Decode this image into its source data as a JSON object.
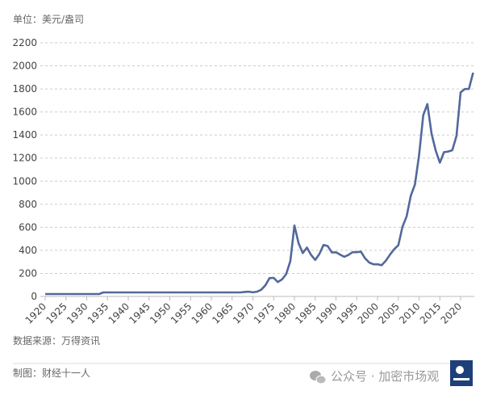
{
  "unit_label": "单位：美元/盎司",
  "source_label": "数据来源：万得资讯",
  "credit_label": "制图：财经十一人",
  "watermark": "公众号 · 加密市场观",
  "chart_data": {
    "type": "line",
    "title": "",
    "xlabel": "",
    "ylabel": "单位：美元/盎司",
    "ylim": [
      0,
      2200
    ],
    "xlim": [
      1920,
      2023
    ],
    "grid": true,
    "y_ticks": [
      "0",
      "200",
      "400",
      "600",
      "800",
      "1000",
      "1200",
      "1400",
      "1600",
      "1800",
      "2000",
      "2200"
    ],
    "x_ticks": [
      "1920",
      "1925",
      "1930",
      "1935",
      "1940",
      "1945",
      "1950",
      "1955",
      "1960",
      "1965",
      "1970",
      "1975",
      "1980",
      "1985",
      "1990",
      "1995",
      "2000",
      "2005",
      "2010",
      "2015",
      "2020"
    ],
    "line_color": "#52699b",
    "series": [
      {
        "x": [
          1920,
          1921,
          1922,
          1923,
          1924,
          1925,
          1926,
          1927,
          1928,
          1929,
          1930,
          1931,
          1932,
          1933,
          1934,
          1935,
          1936,
          1937,
          1938,
          1939,
          1940,
          1941,
          1942,
          1943,
          1944,
          1945,
          1946,
          1947,
          1948,
          1949,
          1950,
          1951,
          1952,
          1953,
          1954,
          1955,
          1956,
          1957,
          1958,
          1959,
          1960,
          1961,
          1962,
          1963,
          1964,
          1965,
          1966,
          1967,
          1968,
          1969,
          1970,
          1971,
          1972,
          1973,
          1974,
          1975,
          1976,
          1977,
          1978,
          1979,
          1980,
          1981,
          1982,
          1983,
          1984,
          1985,
          1986,
          1987,
          1988,
          1989,
          1990,
          1991,
          1992,
          1993,
          1994,
          1995,
          1996,
          1997,
          1998,
          1999,
          2000,
          2001,
          2002,
          2003,
          2004,
          2005,
          2006,
          2007,
          2008,
          2009,
          2010,
          2011,
          2012,
          2013,
          2014,
          2015,
          2016,
          2017,
          2018,
          2019,
          2020,
          2021,
          2022,
          2023
        ],
        "y": [
          20.67,
          20.67,
          20.67,
          20.67,
          20.67,
          20.67,
          20.67,
          20.67,
          20.67,
          20.67,
          20.67,
          20.67,
          20.67,
          20.67,
          35,
          35,
          35,
          35,
          35,
          35,
          35,
          35,
          35,
          35,
          35,
          35,
          35,
          35,
          35,
          35,
          35,
          35,
          35,
          35,
          35,
          35,
          35,
          35,
          35,
          35,
          35,
          35,
          35,
          35,
          35,
          35,
          35,
          35,
          39,
          41,
          36,
          41,
          58,
          97,
          159,
          161,
          125,
          148,
          193,
          306,
          615,
          460,
          376,
          424,
          361,
          317,
          368,
          447,
          437,
          381,
          383,
          362,
          344,
          360,
          384,
          384,
          388,
          331,
          294,
          279,
          279,
          271,
          310,
          363,
          409,
          444,
          603,
          695,
          872,
          972,
          1225,
          1572,
          1669,
          1411,
          1266,
          1160,
          1251,
          1257,
          1268,
          1393,
          1770,
          1799,
          1800,
          1941
        ]
      }
    ]
  }
}
